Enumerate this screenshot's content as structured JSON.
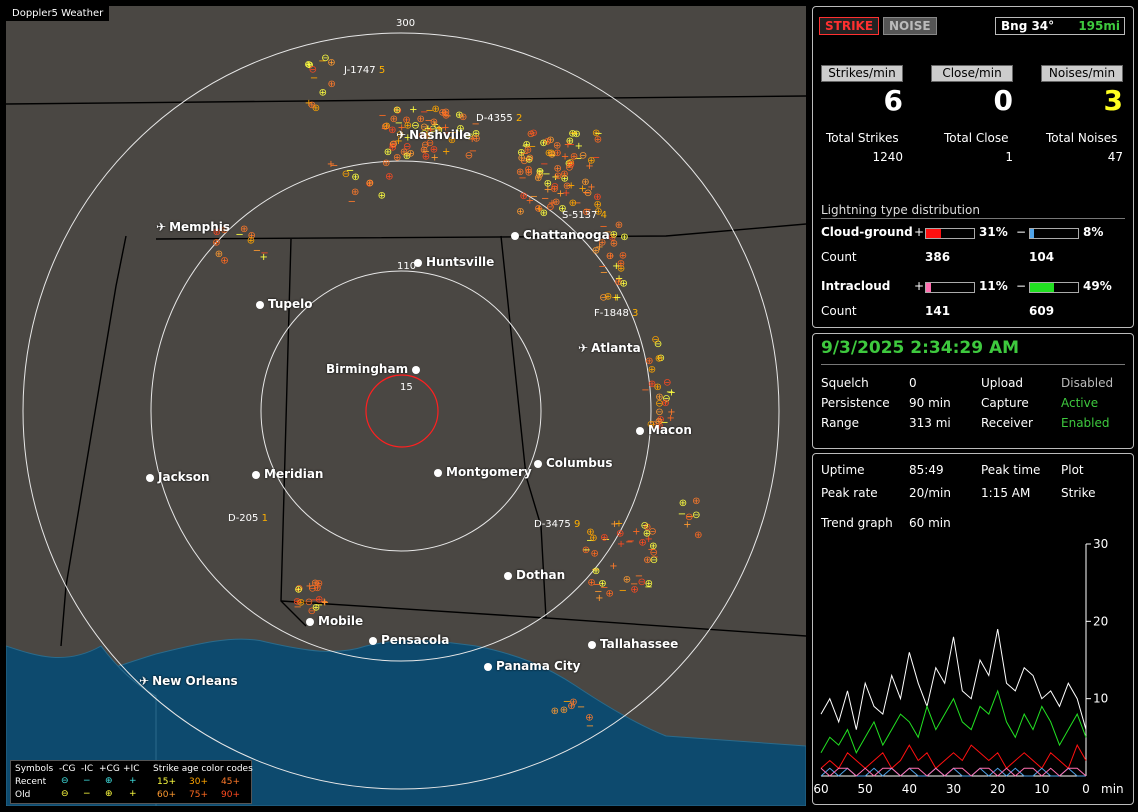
{
  "app": {
    "title": "Doppler5 Weather"
  },
  "map": {
    "range_labels": [
      "300",
      "110",
      "15"
    ],
    "cities": [
      {
        "name": "Nashville",
        "icon": "airport"
      },
      {
        "name": "Memphis",
        "icon": "airport"
      },
      {
        "name": "Chattanooga",
        "icon": "dot"
      },
      {
        "name": "Huntsville",
        "icon": "dot"
      },
      {
        "name": "Tupelo",
        "icon": "dot"
      },
      {
        "name": "Atlanta",
        "icon": "airport"
      },
      {
        "name": "Birmingham",
        "icon": "dot"
      },
      {
        "name": "Macon",
        "icon": "dot"
      },
      {
        "name": "Jackson",
        "icon": "dot"
      },
      {
        "name": "Meridian",
        "icon": "dot"
      },
      {
        "name": "Montgomery",
        "icon": "dot"
      },
      {
        "name": "Columbus",
        "icon": "dot"
      },
      {
        "name": "Dothan",
        "icon": "dot"
      },
      {
        "name": "Mobile",
        "icon": "dot"
      },
      {
        "name": "Pensacola",
        "icon": "dot"
      },
      {
        "name": "Tallahassee",
        "icon": "dot"
      },
      {
        "name": "Panama City",
        "icon": "dot"
      },
      {
        "name": "New Orleans",
        "icon": "airport"
      }
    ],
    "cells": [
      {
        "id": "J-1747",
        "value": "5"
      },
      {
        "id": "D-4355",
        "value": "2"
      },
      {
        "id": "S-5137",
        "value": "4"
      },
      {
        "id": "F-1848",
        "value": "3"
      },
      {
        "id": "D-205",
        "value": "1"
      },
      {
        "id": "D-3475",
        "value": "9"
      }
    ],
    "legend": {
      "header": [
        "Symbols",
        "-CG",
        "-IC",
        "+CG",
        "+IC",
        "Strike age color codes"
      ],
      "recent": {
        "label": "Recent",
        "ages": [
          "15+",
          "30+",
          "45+"
        ]
      },
      "old": {
        "label": "Old",
        "ages": [
          "60+",
          "75+",
          "90+"
        ]
      },
      "age_colors": [
        "#ffff40",
        "#ffa500",
        "#ff7a2a",
        "#ff9a30",
        "#ff6a20",
        "#ff4a20"
      ]
    }
  },
  "top_panel": {
    "strike_button": "STRIKE",
    "noise_button": "NOISE",
    "bearing": "Bng 34°",
    "distance": "195mi",
    "rate_headers": [
      "Strikes/min",
      "Close/min",
      "Noises/min"
    ],
    "rates": [
      "6",
      "0",
      "3"
    ],
    "totals_labels": [
      "Total Strikes",
      "Total Close",
      "Total Noises"
    ],
    "totals": [
      "1240",
      "1",
      "47"
    ],
    "distribution_title": "Lightning type distribution",
    "cloud_ground": {
      "label": "Cloud-ground",
      "pos_pct": "31%",
      "neg_pct": "8%",
      "pos_count": "386",
      "neg_count": "104",
      "pos_fill": 0.31,
      "neg_fill": 0.08
    },
    "intracloud": {
      "label": "Intracloud",
      "pos_pct": "11%",
      "neg_pct": "49%",
      "pos_count": "141",
      "neg_count": "609",
      "pos_fill": 0.11,
      "neg_fill": 0.49
    },
    "count_label": "Count",
    "plus": "+",
    "minus": "−",
    "colors": {
      "cg_pos": "#ff1010",
      "cg_neg": "#4fa3e8",
      "ic_pos": "#ff6fb0",
      "ic_neg": "#22e022"
    }
  },
  "status_panel": {
    "datetime": "9/3/2025 2:34:29 AM",
    "rows": [
      {
        "label": "Squelch",
        "value": "0",
        "label2": "Upload",
        "value2": "Disabled"
      },
      {
        "label": "Persistence",
        "value": "90 min",
        "label2": "Capture",
        "value2": "Active"
      },
      {
        "label": "Range",
        "value": "313 mi",
        "label2": "Receiver",
        "value2": "Enabled"
      }
    ]
  },
  "trend_panel": {
    "uptime_label": "Uptime",
    "uptime": "85:49",
    "peak_time_label": "Peak time",
    "plot_label": "Plot",
    "peak_rate_label": "Peak rate",
    "peak_rate": "20/min",
    "peak_time": "1:15 AM",
    "plot": "Strike",
    "trend_label": "Trend graph",
    "trend_value": "60 min",
    "y_ticks": [
      "30",
      "20",
      "10"
    ],
    "x_ticks": [
      "60",
      "50",
      "40",
      "30",
      "20",
      "10",
      "0"
    ],
    "x_unit": "min"
  },
  "chart_data": {
    "type": "line",
    "title": "",
    "xlabel": "min",
    "ylabel": "",
    "xlim": [
      60,
      0
    ],
    "ylim": [
      0,
      30
    ],
    "x": [
      60,
      58,
      56,
      54,
      52,
      50,
      48,
      46,
      44,
      42,
      40,
      38,
      36,
      34,
      32,
      30,
      28,
      26,
      24,
      22,
      20,
      18,
      16,
      14,
      12,
      10,
      8,
      6,
      4,
      2,
      0
    ],
    "series": [
      {
        "color": "#ffffff",
        "values": [
          8,
          10,
          7,
          11,
          6,
          12,
          9,
          8,
          13,
          10,
          16,
          12,
          9,
          14,
          12,
          18,
          11,
          10,
          15,
          13,
          19,
          12,
          11,
          14,
          13,
          10,
          11,
          9,
          12,
          10,
          6
        ]
      },
      {
        "color": "#22e022",
        "values": [
          3,
          5,
          4,
          6,
          3,
          5,
          7,
          4,
          6,
          8,
          7,
          5,
          9,
          6,
          8,
          10,
          7,
          6,
          9,
          8,
          11,
          7,
          5,
          8,
          6,
          9,
          7,
          4,
          6,
          8,
          5
        ]
      },
      {
        "color": "#ff1010",
        "values": [
          1,
          2,
          1,
          3,
          2,
          1,
          2,
          3,
          1,
          2,
          4,
          2,
          3,
          1,
          2,
          3,
          2,
          4,
          3,
          2,
          3,
          1,
          2,
          3,
          2,
          1,
          3,
          2,
          1,
          4,
          2
        ]
      },
      {
        "color": "#4fa3e8",
        "values": [
          0,
          1,
          0,
          1,
          0,
          0,
          1,
          0,
          1,
          0,
          1,
          0,
          0,
          1,
          0,
          1,
          0,
          0,
          1,
          0,
          1,
          0,
          1,
          0,
          0,
          1,
          0,
          0,
          1,
          0,
          0
        ]
      },
      {
        "color": "#ff6fb0",
        "values": [
          1,
          0,
          1,
          1,
          0,
          1,
          0,
          1,
          1,
          0,
          1,
          1,
          0,
          1,
          0,
          1,
          1,
          0,
          1,
          1,
          0,
          1,
          0,
          1,
          1,
          0,
          1,
          0,
          1,
          1,
          0
        ]
      }
    ]
  }
}
